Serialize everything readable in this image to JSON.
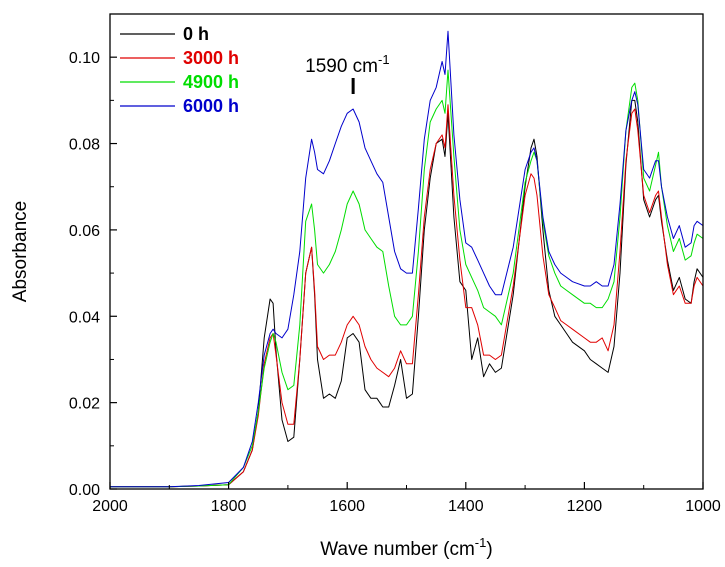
{
  "chart_data": {
    "type": "line",
    "xlabel": "Wave number (cm",
    "xlabel_sup": "-1",
    "xlabel_end": ")",
    "ylabel": "Absorbance",
    "xlim": [
      2000,
      1000
    ],
    "ylim": [
      0.0,
      0.11
    ],
    "x_reversed": true,
    "x_ticks": [
      2000,
      1800,
      1600,
      1400,
      1200,
      1000
    ],
    "x_tick_labels": [
      "2000",
      "1800",
      "1600",
      "1400",
      "1200",
      "1000"
    ],
    "y_ticks": [
      0.0,
      0.02,
      0.04,
      0.06,
      0.08,
      0.1
    ],
    "y_tick_labels": [
      "0.00",
      "0.02",
      "0.04",
      "0.06",
      "0.08",
      "0.10"
    ],
    "grid": false,
    "legend_position": "top-left",
    "annotation": {
      "text": "1590 cm",
      "sup": "-1",
      "x": 1590
    },
    "x": [
      2000,
      1900,
      1850,
      1800,
      1775,
      1760,
      1750,
      1740,
      1730,
      1725,
      1720,
      1710,
      1700,
      1690,
      1680,
      1670,
      1660,
      1655,
      1650,
      1640,
      1630,
      1620,
      1610,
      1600,
      1590,
      1580,
      1570,
      1560,
      1550,
      1540,
      1530,
      1520,
      1510,
      1500,
      1490,
      1480,
      1470,
      1460,
      1450,
      1440,
      1435,
      1430,
      1420,
      1410,
      1400,
      1390,
      1380,
      1370,
      1360,
      1350,
      1340,
      1320,
      1300,
      1290,
      1285,
      1280,
      1270,
      1260,
      1250,
      1240,
      1230,
      1220,
      1200,
      1190,
      1180,
      1170,
      1160,
      1150,
      1140,
      1130,
      1120,
      1115,
      1110,
      1100,
      1090,
      1080,
      1075,
      1070,
      1060,
      1050,
      1040,
      1030,
      1020,
      1015,
      1010,
      1000
    ],
    "series": [
      {
        "name": "0 h",
        "color": "#000000",
        "values": [
          0.0005,
          0.0005,
          0.0007,
          0.001,
          0.004,
          0.009,
          0.018,
          0.035,
          0.044,
          0.043,
          0.032,
          0.016,
          0.011,
          0.012,
          0.03,
          0.05,
          0.056,
          0.045,
          0.03,
          0.021,
          0.022,
          0.021,
          0.025,
          0.035,
          0.036,
          0.034,
          0.023,
          0.021,
          0.021,
          0.019,
          0.019,
          0.024,
          0.03,
          0.021,
          0.022,
          0.04,
          0.06,
          0.072,
          0.08,
          0.081,
          0.077,
          0.087,
          0.063,
          0.048,
          0.046,
          0.03,
          0.035,
          0.026,
          0.029,
          0.027,
          0.028,
          0.045,
          0.07,
          0.079,
          0.081,
          0.077,
          0.06,
          0.046,
          0.04,
          0.038,
          0.036,
          0.034,
          0.032,
          0.03,
          0.029,
          0.028,
          0.027,
          0.033,
          0.05,
          0.075,
          0.09,
          0.09,
          0.085,
          0.067,
          0.063,
          0.067,
          0.068,
          0.062,
          0.053,
          0.046,
          0.049,
          0.044,
          0.043,
          0.048,
          0.051,
          0.049
        ]
      },
      {
        "name": "3000 h",
        "color": "#e00000",
        "values": [
          0.0005,
          0.0005,
          0.0007,
          0.001,
          0.004,
          0.009,
          0.017,
          0.029,
          0.035,
          0.036,
          0.031,
          0.02,
          0.015,
          0.015,
          0.03,
          0.05,
          0.056,
          0.046,
          0.033,
          0.03,
          0.031,
          0.031,
          0.034,
          0.038,
          0.04,
          0.038,
          0.033,
          0.03,
          0.028,
          0.027,
          0.026,
          0.028,
          0.032,
          0.029,
          0.029,
          0.045,
          0.063,
          0.074,
          0.08,
          0.082,
          0.079,
          0.089,
          0.068,
          0.053,
          0.042,
          0.042,
          0.038,
          0.031,
          0.031,
          0.03,
          0.031,
          0.047,
          0.068,
          0.073,
          0.072,
          0.068,
          0.054,
          0.045,
          0.042,
          0.039,
          0.038,
          0.037,
          0.035,
          0.034,
          0.034,
          0.035,
          0.032,
          0.038,
          0.055,
          0.076,
          0.087,
          0.088,
          0.083,
          0.068,
          0.064,
          0.068,
          0.069,
          0.063,
          0.052,
          0.045,
          0.047,
          0.043,
          0.043,
          0.047,
          0.049,
          0.047
        ]
      },
      {
        "name": "4900 h",
        "color": "#00dd00",
        "values": [
          0.0005,
          0.0005,
          0.0007,
          0.001,
          0.005,
          0.01,
          0.018,
          0.028,
          0.034,
          0.036,
          0.034,
          0.027,
          0.023,
          0.024,
          0.038,
          0.062,
          0.066,
          0.06,
          0.052,
          0.05,
          0.052,
          0.055,
          0.06,
          0.066,
          0.069,
          0.066,
          0.06,
          0.058,
          0.056,
          0.055,
          0.047,
          0.04,
          0.038,
          0.038,
          0.04,
          0.055,
          0.074,
          0.085,
          0.088,
          0.09,
          0.087,
          0.097,
          0.077,
          0.06,
          0.052,
          0.049,
          0.046,
          0.042,
          0.041,
          0.04,
          0.038,
          0.05,
          0.071,
          0.076,
          0.078,
          0.076,
          0.062,
          0.054,
          0.05,
          0.047,
          0.046,
          0.045,
          0.043,
          0.043,
          0.042,
          0.042,
          0.044,
          0.048,
          0.063,
          0.083,
          0.093,
          0.094,
          0.09,
          0.072,
          0.069,
          0.075,
          0.078,
          0.07,
          0.061,
          0.055,
          0.058,
          0.053,
          0.054,
          0.057,
          0.059,
          0.058
        ]
      },
      {
        "name": "6000 h",
        "color": "#0000cc",
        "values": [
          0.0005,
          0.0005,
          0.0008,
          0.0015,
          0.005,
          0.011,
          0.02,
          0.031,
          0.036,
          0.037,
          0.036,
          0.035,
          0.037,
          0.045,
          0.055,
          0.072,
          0.081,
          0.078,
          0.074,
          0.073,
          0.076,
          0.08,
          0.084,
          0.087,
          0.088,
          0.085,
          0.079,
          0.076,
          0.073,
          0.071,
          0.063,
          0.055,
          0.051,
          0.05,
          0.05,
          0.065,
          0.081,
          0.09,
          0.093,
          0.099,
          0.096,
          0.106,
          0.082,
          0.067,
          0.057,
          0.056,
          0.053,
          0.05,
          0.047,
          0.045,
          0.045,
          0.056,
          0.074,
          0.078,
          0.079,
          0.076,
          0.063,
          0.055,
          0.052,
          0.05,
          0.049,
          0.048,
          0.047,
          0.047,
          0.048,
          0.047,
          0.047,
          0.052,
          0.066,
          0.083,
          0.09,
          0.092,
          0.089,
          0.074,
          0.072,
          0.076,
          0.076,
          0.07,
          0.063,
          0.058,
          0.061,
          0.056,
          0.057,
          0.061,
          0.062,
          0.061
        ]
      }
    ]
  }
}
